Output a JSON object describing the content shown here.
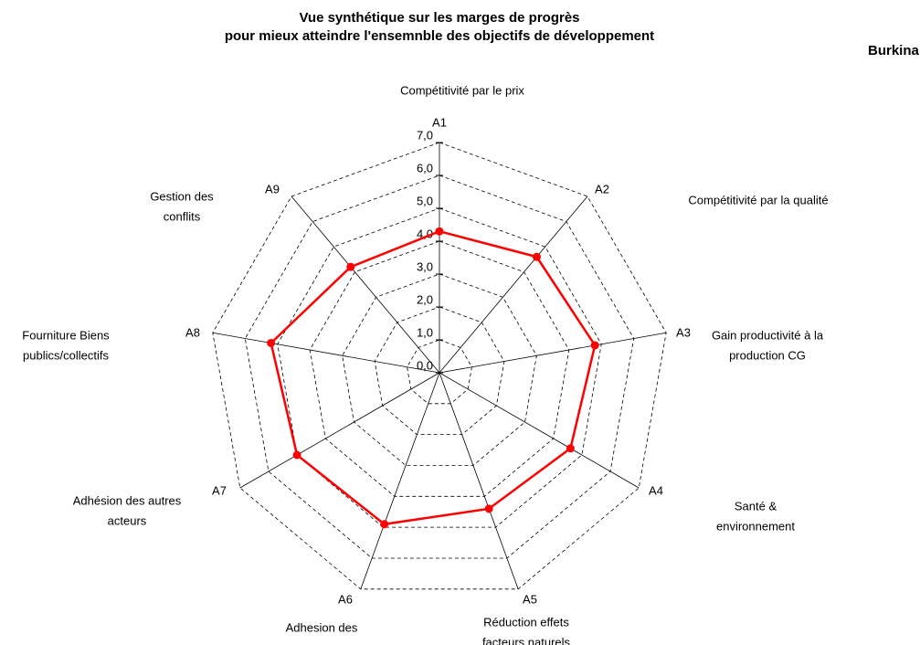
{
  "chart_data": {
    "type": "radar",
    "title": [
      "Vue synthétique sur les marges de progrès",
      "pour mieux atteindre l'ensemnble des objectifs de développement"
    ],
    "subtitle": "Burkina",
    "categories": [
      "A1",
      "A2",
      "A3",
      "A4",
      "A5",
      "A6",
      "A7",
      "A8",
      "A9"
    ],
    "descriptions": [
      [
        "Compétitivité  par le prix"
      ],
      [
        "Compétitivité par la qualité"
      ],
      [
        "Gain productivité à la",
        "production CG"
      ],
      [
        "Santé &",
        "environnement"
      ],
      [
        "Réduction effets",
        "facteurs naturels"
      ],
      [
        "Adhesion des"
      ],
      [
        "Adhésion des autres",
        "acteurs"
      ],
      [
        "Fourniture Biens",
        "publics/collectifs"
      ],
      [
        "Gestion des",
        "conflits"
      ]
    ],
    "series": [
      {
        "color": "#ff0000",
        "values": [
          4.3,
          4.6,
          4.8,
          4.6,
          4.4,
          4.9,
          5.0,
          5.2,
          4.2
        ]
      }
    ],
    "ylim": [
      0,
      7
    ],
    "yticks": [
      {
        "value": 0,
        "label": "0,0"
      },
      {
        "value": 1,
        "label": "1,0"
      },
      {
        "value": 2,
        "label": "2,0"
      },
      {
        "value": 3,
        "label": "3,0"
      },
      {
        "value": 4,
        "label": "4,0"
      },
      {
        "value": 5,
        "label": "5,0"
      },
      {
        "value": 6,
        "label": "6,0"
      },
      {
        "value": 7,
        "label": "7,0"
      }
    ],
    "grid": true
  }
}
